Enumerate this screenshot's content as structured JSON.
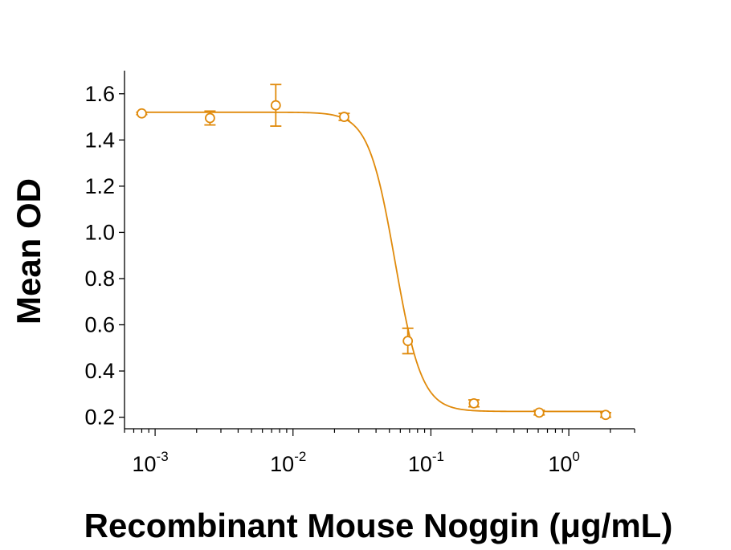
{
  "chart_data": {
    "type": "scatter",
    "title": "",
    "xlabel": "Recombinant Mouse Noggin (μg/mL)",
    "ylabel": "Mean OD",
    "x_scale": "log",
    "xlim": [
      0.0006,
      3
    ],
    "ylim": [
      0.15,
      1.7
    ],
    "y_ticks": [
      "0.2",
      "0.4",
      "0.6",
      "0.8",
      "1.0",
      "1.2",
      "1.4",
      "1.6"
    ],
    "x_ticks": [
      {
        "base": "10",
        "exp": "-3",
        "value": 0.001
      },
      {
        "base": "10",
        "exp": "-2",
        "value": 0.01
      },
      {
        "base": "10",
        "exp": "-1",
        "value": 0.1
      },
      {
        "base": "10",
        "exp": "0",
        "value": 1
      }
    ],
    "series": [
      {
        "color": "#E08A0B",
        "x": [
          0.0008,
          0.0025,
          0.0075,
          0.0235,
          0.068,
          0.205,
          0.61,
          1.85
        ],
        "y": [
          1.515,
          1.495,
          1.55,
          1.5,
          0.53,
          0.26,
          0.22,
          0.21
        ],
        "error": [
          0.005,
          0.03,
          0.09,
          0.015,
          0.055,
          0.015,
          0.01,
          0.01
        ],
        "fit": {
          "model": "4PL",
          "top": 1.52,
          "bottom": 0.225,
          "ec50": 0.055,
          "hill": 4.5
        }
      }
    ],
    "grid": false,
    "legend": "none"
  }
}
